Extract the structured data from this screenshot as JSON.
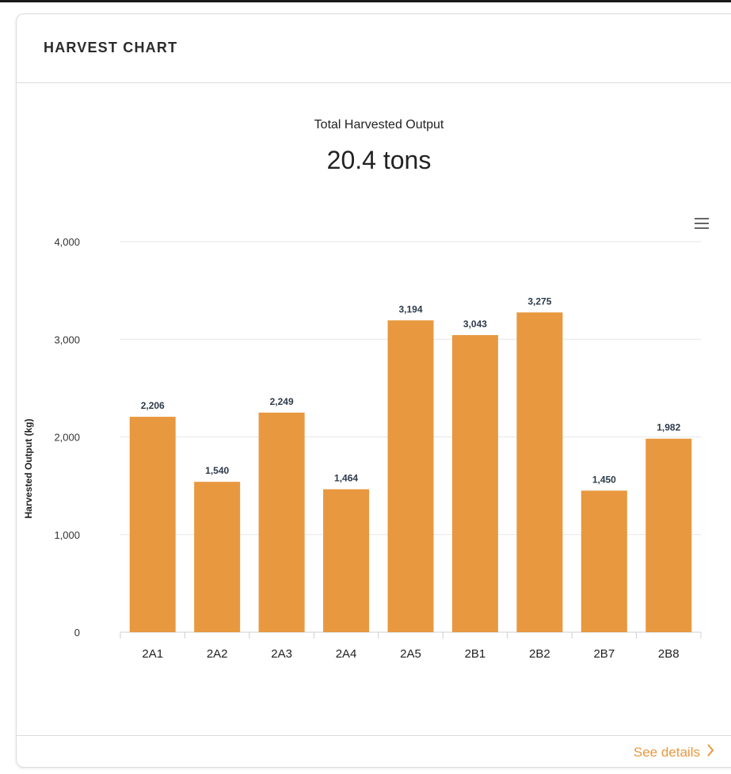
{
  "card": {
    "title": "HARVEST CHART",
    "see_details_label": "See details"
  },
  "summary": {
    "label": "Total Harvested Output",
    "value": "20.4 tons"
  },
  "icons": {
    "menu": "hamburger-menu-icon",
    "see_details": "chevron-right-icon"
  },
  "colors": {
    "bar": "#e8983f",
    "link": "#e8983f",
    "data_label": "#2d3a4a"
  },
  "chart_data": {
    "type": "bar",
    "title": "",
    "xlabel": "",
    "ylabel": "Harvested Output (kg)",
    "categories": [
      "2A1",
      "2A2",
      "2A3",
      "2A4",
      "2A5",
      "2B1",
      "2B2",
      "2B7",
      "2B8"
    ],
    "values": [
      2206,
      1540,
      2249,
      1464,
      3194,
      3043,
      3275,
      1450,
      1982
    ],
    "value_labels": [
      "2,206",
      "1,540",
      "2,249",
      "1,464",
      "3,194",
      "3,043",
      "3,275",
      "1,450",
      "1,982"
    ],
    "ylim": [
      0,
      4000
    ],
    "yticks": [
      0,
      1000,
      2000,
      3000,
      4000
    ],
    "ytick_labels": [
      "0",
      "1,000",
      "2,000",
      "3,000",
      "4,000"
    ],
    "grid": true,
    "legend": "none"
  }
}
